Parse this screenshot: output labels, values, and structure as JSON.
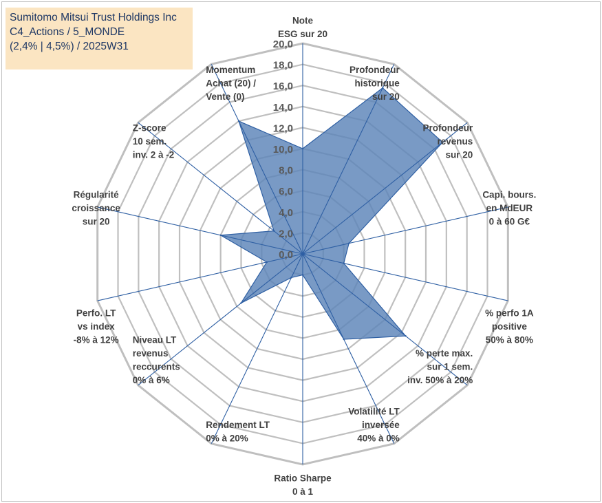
{
  "title_lines": [
    "Sumitomo Mitsui Trust Holdings Inc",
    "C4_Actions / 5_MONDE",
    "(2,4% | 4,5%) / 2025W31"
  ],
  "colors": {
    "fill": "#5b84b8",
    "stroke": "#2e5fa3",
    "spoke": "#2e5fa3",
    "grid": "#bfbfbf",
    "title_bg": "#fbe5c2",
    "title_text": "#1f3864"
  },
  "chart_data": {
    "type": "radar",
    "scale": {
      "min": 0,
      "max": 20,
      "step": 2
    },
    "tick_labels": [
      "0,0",
      "2,0",
      "4,0",
      "6,0",
      "8,0",
      "10,0",
      "12,0",
      "14,0",
      "16,0",
      "18,0",
      "20,0"
    ],
    "axes": [
      {
        "label_lines": [
          "Note",
          "ESG sur 20"
        ]
      },
      {
        "label_lines": [
          "Profondeur",
          "historique",
          "sur 20"
        ]
      },
      {
        "label_lines": [
          "Profondeur",
          "revenus",
          "sur 20"
        ]
      },
      {
        "label_lines": [
          "Capi. bours.",
          "en MdEUR",
          "0 à 60 G€"
        ]
      },
      {
        "label_lines": [
          "% perfo 1A",
          "positive",
          "50% à 80%"
        ]
      },
      {
        "label_lines": [
          "% perte max.",
          "sur 1 sem.",
          "inv. 50% à 20%"
        ]
      },
      {
        "label_lines": [
          "Volatilité LT",
          "inversée",
          "40% à 0%"
        ]
      },
      {
        "label_lines": [
          "Ratio Sharpe",
          "0 à 1"
        ]
      },
      {
        "label_lines": [
          "Rendement LT",
          "0% à 20%"
        ]
      },
      {
        "label_lines": [
          "Niveau LT",
          "revenus",
          "reccurents",
          "0% à 6%"
        ]
      },
      {
        "label_lines": [
          "Perfo. LT",
          "vs index",
          "-8% à 12%"
        ]
      },
      {
        "label_lines": [
          "Régularité",
          "croissance",
          "sur 20"
        ]
      },
      {
        "label_lines": [
          "Z-score",
          "10 sem.",
          "inv. 2 à -2"
        ]
      },
      {
        "label_lines": [
          "Momentum",
          "Achat (20) /",
          "Vente (0)"
        ]
      }
    ],
    "series": [
      {
        "values": [
          10.0,
          17.5,
          17.0,
          4.5,
          4.0,
          12.5,
          9.0,
          2.0,
          2.5,
          7.5,
          3.5,
          8.0,
          3.5,
          14.0
        ]
      }
    ]
  }
}
